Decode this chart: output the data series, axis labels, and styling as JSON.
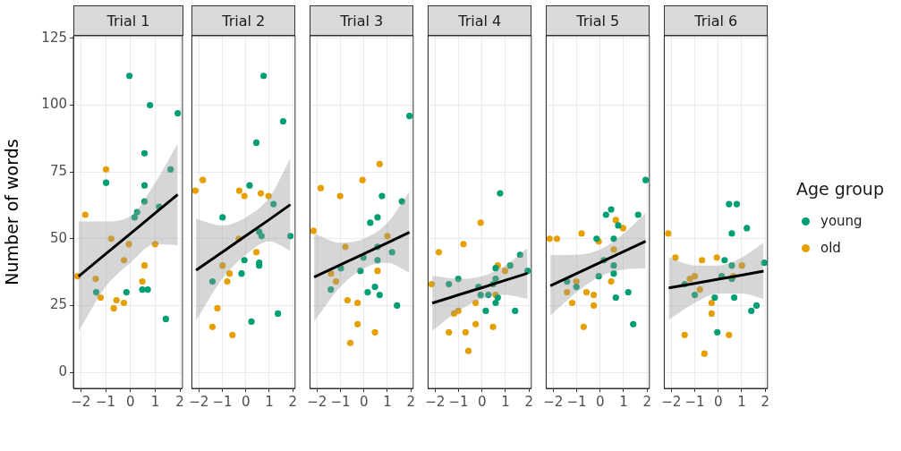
{
  "chart_data": [
    {
      "type": "scatter",
      "title": "Trial 1",
      "ylabel": "Number of words",
      "xlim": [
        -2.3,
        2.1
      ],
      "xticks": [
        -2,
        -1,
        0,
        1,
        2
      ],
      "ylim": [
        -6,
        126
      ],
      "yticks": [
        0,
        25,
        50,
        75,
        100,
        125
      ],
      "grid": true,
      "marker": "circle",
      "series": [
        {
          "color": "#009e73",
          "x": [
            -0.04,
            0.79,
            1.91,
            0.57,
            1.62,
            -0.98,
            0.57,
            0.57,
            0.27,
            0.17,
            1.16,
            -1.38,
            -0.16,
            0.48,
            0.7,
            1.43
          ],
          "values": [
            111,
            100,
            97,
            82,
            76,
            71,
            70,
            64,
            60,
            58,
            62,
            30,
            30,
            31,
            31,
            20
          ]
        },
        {
          "color": "#e69f00",
          "x": [
            -0.98,
            -1.82,
            -2.13,
            -0.77,
            -0.06,
            1.0,
            -0.26,
            0.57,
            -1.4,
            0.48,
            -1.2,
            -0.56,
            -0.26,
            -0.67
          ],
          "values": [
            76,
            59,
            36,
            50,
            48,
            48,
            42,
            40,
            35,
            34,
            28,
            27,
            26,
            24
          ]
        },
        {
          "type": "line",
          "marker": "none",
          "color": "#000000",
          "x": [
            -2.09,
            -1,
            0,
            1,
            1.91
          ],
          "values": [
            35.9,
            44.3,
            51.9,
            59.6,
            66.6
          ],
          "lower": [
            15.3,
            32,
            41,
            48,
            47.6
          ],
          "upper": [
            56.5,
            56.5,
            58.5,
            71,
            85.6
          ]
        }
      ]
    },
    {
      "type": "scatter",
      "title": "Trial 2",
      "xlim": [
        -2.3,
        2.1
      ],
      "xticks": [
        -2,
        -1,
        0,
        1,
        2
      ],
      "ylim": [
        -6,
        126
      ],
      "yticks": [
        0,
        25,
        50,
        75,
        100,
        125
      ],
      "grid": true,
      "marker": "circle",
      "tick_labels": "x",
      "series": [
        {
          "color": "#009e73",
          "x": [
            0.76,
            1.59,
            0.45,
            0.16,
            -0.99,
            1.18,
            0.57,
            0.67,
            1.9,
            -0.06,
            0.57,
            0.57,
            -0.18,
            -1.42,
            1.37,
            0.24
          ],
          "values": [
            111,
            94,
            86,
            70,
            58,
            63,
            52.6,
            51,
            51,
            42,
            41,
            40,
            37,
            34,
            22,
            19
          ]
        },
        {
          "color": "#e69f00",
          "x": [
            -1.83,
            -2.15,
            -0.28,
            -0.06,
            0.64,
            0.97,
            -0.3,
            0.45,
            -0.99,
            -0.69,
            -0.79,
            -1.21,
            -1.42,
            -0.57
          ],
          "values": [
            72,
            68,
            68,
            66,
            67,
            66,
            50,
            45,
            40,
            37,
            34,
            24,
            17,
            14
          ]
        },
        {
          "type": "line",
          "marker": "none",
          "color": "#000000",
          "x": [
            -2.12,
            -1,
            0,
            1,
            1.9
          ],
          "values": [
            38.2,
            45,
            51.1,
            57.2,
            62.8
          ],
          "lower": [
            19.3,
            35,
            44,
            49,
            45.5
          ],
          "upper": [
            57.5,
            55,
            58,
            65.5,
            80.2
          ]
        }
      ]
    },
    {
      "type": "scatter",
      "title": "Trial 3",
      "xlim": [
        -2.3,
        2.1
      ],
      "xticks": [
        -2,
        -1,
        0,
        1,
        2
      ],
      "ylim": [
        -6,
        126
      ],
      "yticks": [
        0,
        25,
        50,
        75,
        100,
        125
      ],
      "grid": true,
      "marker": "circle",
      "tick_labels": "x",
      "series": [
        {
          "color": "#009e73",
          "x": [
            1.94,
            1.62,
            0.77,
            0.58,
            0.27,
            0.58,
            -0.02,
            1.2,
            0.58,
            -0.98,
            -0.15,
            -1.41,
            0.47,
            0.16,
            0.67,
            1.41
          ],
          "values": [
            96,
            64,
            66,
            58,
            56,
            47,
            43,
            45,
            42,
            39,
            38,
            31,
            32,
            30,
            29,
            25
          ]
        },
        {
          "color": "#e69f00",
          "x": [
            0.67,
            -0.06,
            -1.84,
            -1.01,
            -2.15,
            1.0,
            -0.79,
            -1.4,
            -1.19,
            0.58,
            -0.7,
            -0.27,
            -0.27,
            0.47,
            -0.58
          ],
          "values": [
            78,
            72,
            69,
            66,
            53,
            51,
            47,
            37,
            34,
            38,
            27,
            26,
            18,
            15,
            11
          ]
        },
        {
          "type": "line",
          "marker": "none",
          "color": "#000000",
          "x": [
            -2.12,
            -1,
            0,
            1,
            1.94
          ],
          "values": [
            35.7,
            40.3,
            44.4,
            48.5,
            52.4
          ],
          "lower": [
            19,
            32,
            39,
            41,
            37.3
          ],
          "upper": [
            52,
            48.5,
            50,
            56,
            67.7
          ]
        }
      ]
    },
    {
      "type": "scatter",
      "title": "Trial 4",
      "xlim": [
        -2.3,
        2.1
      ],
      "xticks": [
        -2,
        -1,
        0,
        1,
        2
      ],
      "ylim": [
        -6,
        126
      ],
      "yticks": [
        0,
        25,
        50,
        75,
        100,
        125
      ],
      "grid": true,
      "marker": "circle",
      "tick_labels": "x",
      "series": [
        {
          "color": "#009e73",
          "x": [
            0.77,
            1.62,
            1.2,
            1.94,
            0.58,
            -1.01,
            -1.41,
            0.58,
            -0.15,
            0.47,
            -0.06,
            0.27,
            0.67,
            0.58,
            0.16,
            1.41
          ],
          "values": [
            67,
            44,
            40,
            38,
            39,
            35,
            33,
            35,
            32,
            33,
            29,
            29,
            28,
            26,
            23,
            23
          ]
        },
        {
          "color": "#e69f00",
          "x": [
            -0.06,
            -0.79,
            -1.84,
            -2.15,
            0.67,
            0.98,
            0.58,
            -0.27,
            -1.01,
            -1.19,
            -1.41,
            -0.7,
            -0.27,
            0.47,
            -0.58
          ],
          "values": [
            56,
            48,
            45,
            33,
            40,
            38,
            29,
            26,
            23,
            22,
            15,
            15,
            18,
            17,
            8
          ]
        },
        {
          "type": "line",
          "marker": "none",
          "color": "#000000",
          "x": [
            -2.12,
            -1,
            0,
            1,
            1.94
          ],
          "values": [
            25.9,
            29,
            31.7,
            34.5,
            37.1
          ],
          "lower": [
            15.5,
            23,
            27.5,
            29,
            27.5
          ],
          "upper": [
            36.2,
            35,
            36,
            40,
            46.6
          ]
        }
      ]
    },
    {
      "type": "scatter",
      "title": "Trial 5",
      "xlim": [
        -2.3,
        2.1
      ],
      "xticks": [
        -2,
        -1,
        0,
        1,
        2
      ],
      "ylim": [
        -6,
        126
      ],
      "yticks": [
        0,
        25,
        50,
        75,
        100,
        125
      ],
      "grid": true,
      "marker": "circle",
      "tick_labels": "x",
      "series": [
        {
          "color": "#009e73",
          "x": [
            1.94,
            0.47,
            0.25,
            1.62,
            0.77,
            -0.15,
            0.58,
            0.16,
            0.58,
            0.58,
            -0.06,
            -1.41,
            -1.01,
            1.2,
            0.67,
            1.41
          ],
          "values": [
            72,
            61,
            59,
            59,
            55,
            50,
            50,
            42,
            40,
            37,
            36,
            34,
            32,
            30,
            28,
            18
          ]
        },
        {
          "color": "#e69f00",
          "x": [
            -2.15,
            -1.84,
            -0.79,
            -0.06,
            0.67,
            0.98,
            0.58,
            -1.01,
            0.47,
            -1.41,
            -0.58,
            -0.27,
            -1.19,
            -0.27,
            -0.7
          ],
          "values": [
            50,
            50,
            52,
            49,
            57,
            54,
            46,
            34,
            34,
            30,
            30,
            29,
            26,
            25,
            17
          ]
        },
        {
          "type": "line",
          "marker": "none",
          "color": "#000000",
          "x": [
            -2.12,
            -1,
            0,
            1,
            1.94
          ],
          "values": [
            32.4,
            37,
            41.1,
            45.2,
            49.1
          ],
          "lower": [
            21.2,
            30,
            36,
            38.5,
            39
          ],
          "upper": [
            43.9,
            44,
            46,
            52,
            59.7
          ]
        }
      ]
    },
    {
      "type": "scatter",
      "title": "Trial 6",
      "xlim": [
        -2.3,
        2.1
      ],
      "xticks": [
        -2,
        -1,
        0,
        1,
        2
      ],
      "ylim": [
        -6,
        126
      ],
      "yticks": [
        0,
        25,
        50,
        75,
        100,
        125
      ],
      "grid": true,
      "marker": "circle",
      "legend": "right",
      "legend_title": "Age group",
      "tick_labels": "x",
      "series": [
        {
          "name": "young",
          "color": "#009e73",
          "x": [
            0.46,
            0.79,
            1.22,
            0.58,
            1.96,
            0.27,
            0.58,
            0.15,
            0.58,
            -1.43,
            -1.0,
            -0.15,
            0.68,
            1.63,
            1.41,
            -0.04
          ],
          "values": [
            63,
            63,
            54,
            52,
            41,
            42,
            40,
            36,
            35,
            33,
            29,
            28,
            28,
            25,
            23,
            15
          ]
        },
        {
          "name": "old",
          "color": "#e69f00",
          "x": [
            -2.13,
            -1.82,
            -0.69,
            -0.06,
            1.01,
            0.64,
            -1.0,
            -1.21,
            -0.78,
            -0.28,
            -0.28,
            -1.43,
            0.46,
            -0.59
          ],
          "values": [
            52,
            43,
            42,
            43,
            40,
            36,
            36,
            35,
            31,
            26,
            22,
            14,
            14,
            7
          ]
        },
        {
          "type": "line",
          "marker": "none",
          "color": "#000000",
          "x": [
            -2.11,
            -1,
            0,
            1,
            1.93
          ],
          "values": [
            31.6,
            33.3,
            34.9,
            36.4,
            37.9
          ],
          "lower": [
            19.7,
            26,
            29.5,
            29.5,
            27.5
          ],
          "upper": [
            43,
            40,
            40,
            43,
            48.5
          ]
        }
      ]
    }
  ]
}
